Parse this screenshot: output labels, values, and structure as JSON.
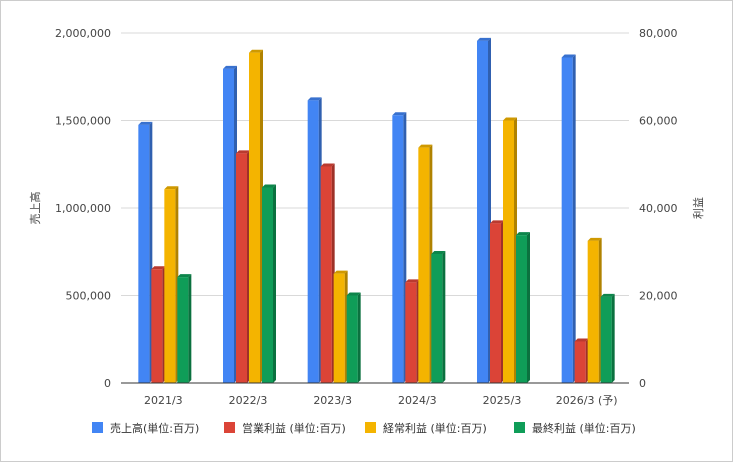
{
  "chart_data": {
    "type": "bar",
    "categories": [
      "2021/3",
      "2022/3",
      "2023/3",
      "2024/3",
      "2025/3",
      "2026/3 (予)"
    ],
    "ylabel_left": "売上高",
    "ylabel_right": "利益",
    "ylim_left": [
      0,
      2000000
    ],
    "ylim_right": [
      0,
      80000
    ],
    "yticks_left": [
      "0",
      "500,000",
      "1,000,000",
      "1,500,000",
      "2,000,000"
    ],
    "yticks_right": [
      "0",
      "20,000",
      "40,000",
      "60,000",
      "80,000"
    ],
    "grid": true,
    "legend_position": "bottom",
    "series": [
      {
        "name": "売上高(単位:百万)",
        "axis": "left",
        "color": "#4285f4",
        "values": [
          1475000,
          1795000,
          1615000,
          1530000,
          1955000,
          1860000
        ]
      },
      {
        "name": "営業利益 (単位:百万)",
        "axis": "right",
        "color": "#db4437",
        "values": [
          26000,
          52500,
          49500,
          23000,
          36500,
          9500
        ]
      },
      {
        "name": "経常利益 (単位:百万)",
        "axis": "right",
        "color": "#f4b400",
        "values": [
          44300,
          75500,
          25000,
          53800,
          60000,
          32500
        ]
      },
      {
        "name": "最終利益 (単位:百万)",
        "axis": "right",
        "color": "#0f9d58",
        "values": [
          24200,
          44700,
          20000,
          29500,
          33800,
          19700
        ]
      }
    ]
  }
}
